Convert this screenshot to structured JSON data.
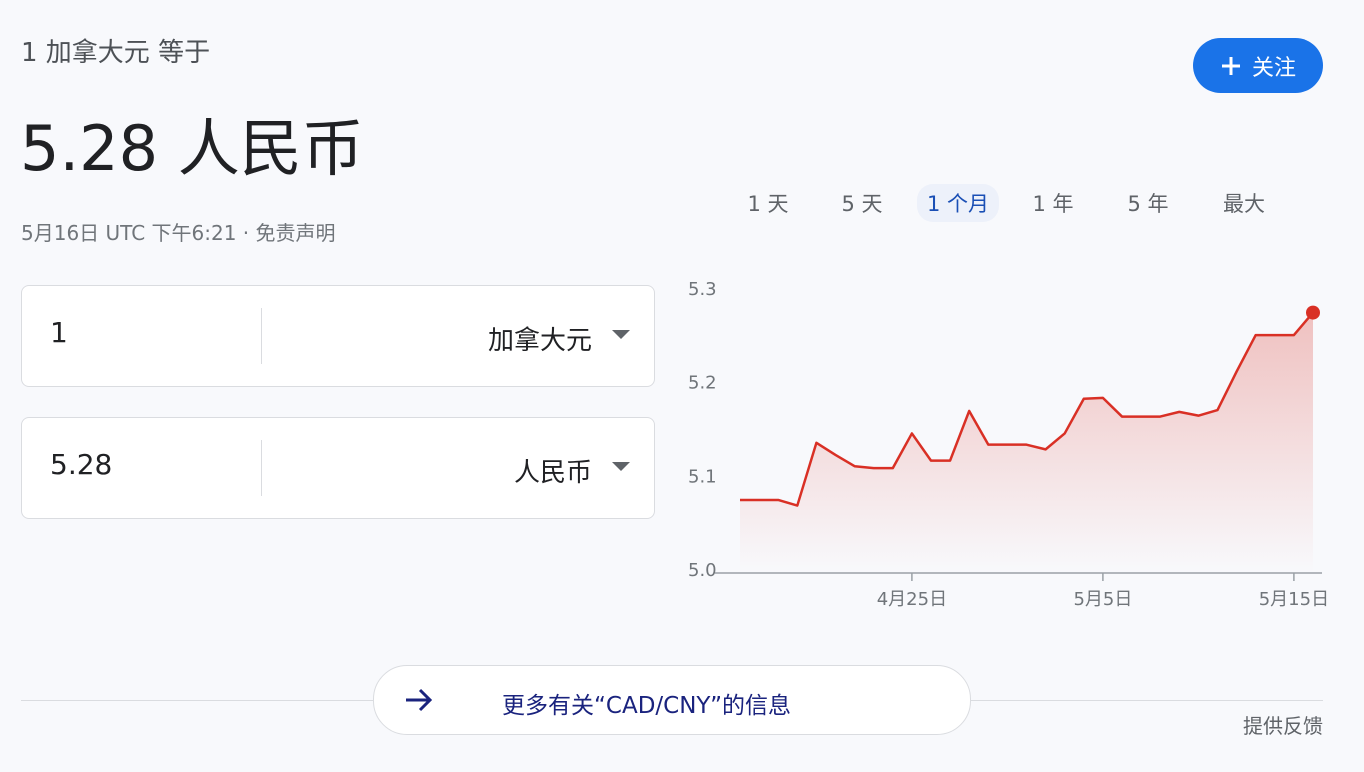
{
  "header": {
    "label": "1 加拿大元 等于",
    "value": "5.28 人民币",
    "timestamp": "5月16日 UTC 下午6:21",
    "disclaimer": "免责声明"
  },
  "follow_button": "关注",
  "converter": {
    "rows": [
      {
        "amount": "1",
        "currency": "加拿大元"
      },
      {
        "amount": "5.28",
        "currency": "人民币"
      }
    ]
  },
  "ranges": [
    "1 天",
    "5 天",
    "1 个月",
    "1 年",
    "5 年",
    "最大"
  ],
  "selected_range": 2,
  "chart_data": {
    "type": "line",
    "color": "#d93025",
    "categories": [
      null,
      null,
      null,
      null,
      null,
      null,
      null,
      null,
      null,
      "4月25日",
      null,
      null,
      null,
      null,
      null,
      null,
      null,
      null,
      null,
      "5月5日",
      null,
      null,
      null,
      null,
      null,
      null,
      null,
      null,
      null,
      "5月15日",
      null
    ],
    "values": [
      5.078,
      5.078,
      5.078,
      5.072,
      5.139,
      5.126,
      5.114,
      5.112,
      5.112,
      5.149,
      5.12,
      5.12,
      5.173,
      5.137,
      5.137,
      5.137,
      5.132,
      5.149,
      5.186,
      5.187,
      5.167,
      5.167,
      5.167,
      5.172,
      5.168,
      5.174,
      5.215,
      5.254,
      5.254,
      5.254,
      5.278
    ],
    "ylim": [
      5,
      5.3
    ],
    "yticks": [
      {
        "value": 5,
        "label": "5.0"
      },
      5.1,
      5.2,
      5.3
    ],
    "grid": false
  },
  "more_info": "更多有关“CAD/CNY”的信息",
  "feedback": "提供反馈"
}
